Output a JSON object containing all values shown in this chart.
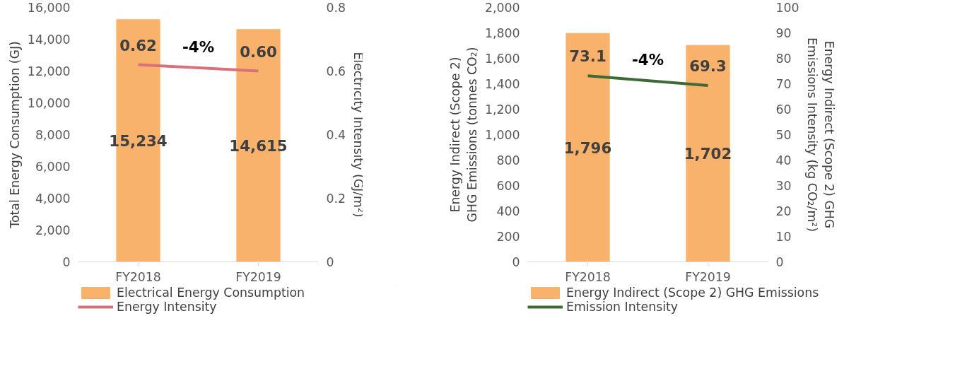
{
  "chart_data": [
    {
      "type": "bar",
      "categories": [
        "FY2018",
        "FY2019"
      ],
      "ylabel": "Total Energy Consumption (GJ)",
      "y2label": "Electricity Intensity (GJ/m²)",
      "ylim": [
        0,
        16000
      ],
      "yticks": [
        0,
        {
          "value": 2000,
          "label": "2,000"
        },
        {
          "value": 4000,
          "label": "4,000"
        },
        {
          "value": 6000,
          "label": "6,000"
        },
        {
          "value": 8000,
          "label": "8,000"
        },
        {
          "value": 10000,
          "label": "10,000"
        },
        {
          "value": 12000,
          "label": "12,000"
        },
        {
          "value": 14000,
          "label": "14,000"
        },
        {
          "value": 16000,
          "label": "16,000"
        }
      ],
      "y2lim": [
        0,
        0.8
      ],
      "y2ticks": [
        0,
        0.2,
        0.4,
        0.6,
        0.8
      ],
      "grid": false,
      "legend": "bottom",
      "annotations": [
        "-4%"
      ],
      "series": [
        {
          "name": "Electrical Energy Consumption",
          "color": "#f9b26b",
          "values": [
            15234,
            14615
          ],
          "value_labels": [
            "15,234",
            "14,615"
          ]
        },
        {
          "name": "Energy Intensity",
          "type": "line",
          "axis": "y2",
          "color": "#d9707a",
          "values": [
            0.62,
            0.6
          ],
          "value_labels": [
            "0.62",
            "0.60"
          ]
        }
      ]
    },
    {
      "type": "bar",
      "categories": [
        "FY2018",
        "FY2019"
      ],
      "ylabel": "Energy Indirect (Scope 2) GHG Emissions (tonnes CO₂)",
      "y2label": "Energy Indirect (Scope 2) GHG Emissions Intensity (kg CO₂/m²)",
      "ylim": [
        0,
        2000
      ],
      "yticks": [
        0,
        200,
        400,
        600,
        800,
        {
          "value": 1000,
          "label": "1,000"
        },
        {
          "value": 1200,
          "label": "1,200"
        },
        {
          "value": 1400,
          "label": "1,400"
        },
        {
          "value": 1600,
          "label": "1,600"
        },
        {
          "value": 1800,
          "label": "1,800"
        },
        {
          "value": 2000,
          "label": "2,000"
        }
      ],
      "y2lim": [
        0,
        100
      ],
      "y2ticks": [
        0,
        10,
        20,
        30,
        40,
        50,
        60,
        70,
        80,
        90,
        100
      ],
      "grid": false,
      "legend": "bottom",
      "annotations": [
        "-4%"
      ],
      "series": [
        {
          "name": "Energy Indirect (Scope 2) GHG Emissions",
          "color": "#f9b26b",
          "values": [
            1796,
            1702
          ],
          "value_labels": [
            "1,796",
            "1,702"
          ]
        },
        {
          "name": "Emission Intensity",
          "type": "line",
          "axis": "y2",
          "color": "#3e6b35",
          "values": [
            73.1,
            69.3
          ],
          "value_labels": [
            "73.1",
            "69.3"
          ]
        }
      ]
    }
  ]
}
